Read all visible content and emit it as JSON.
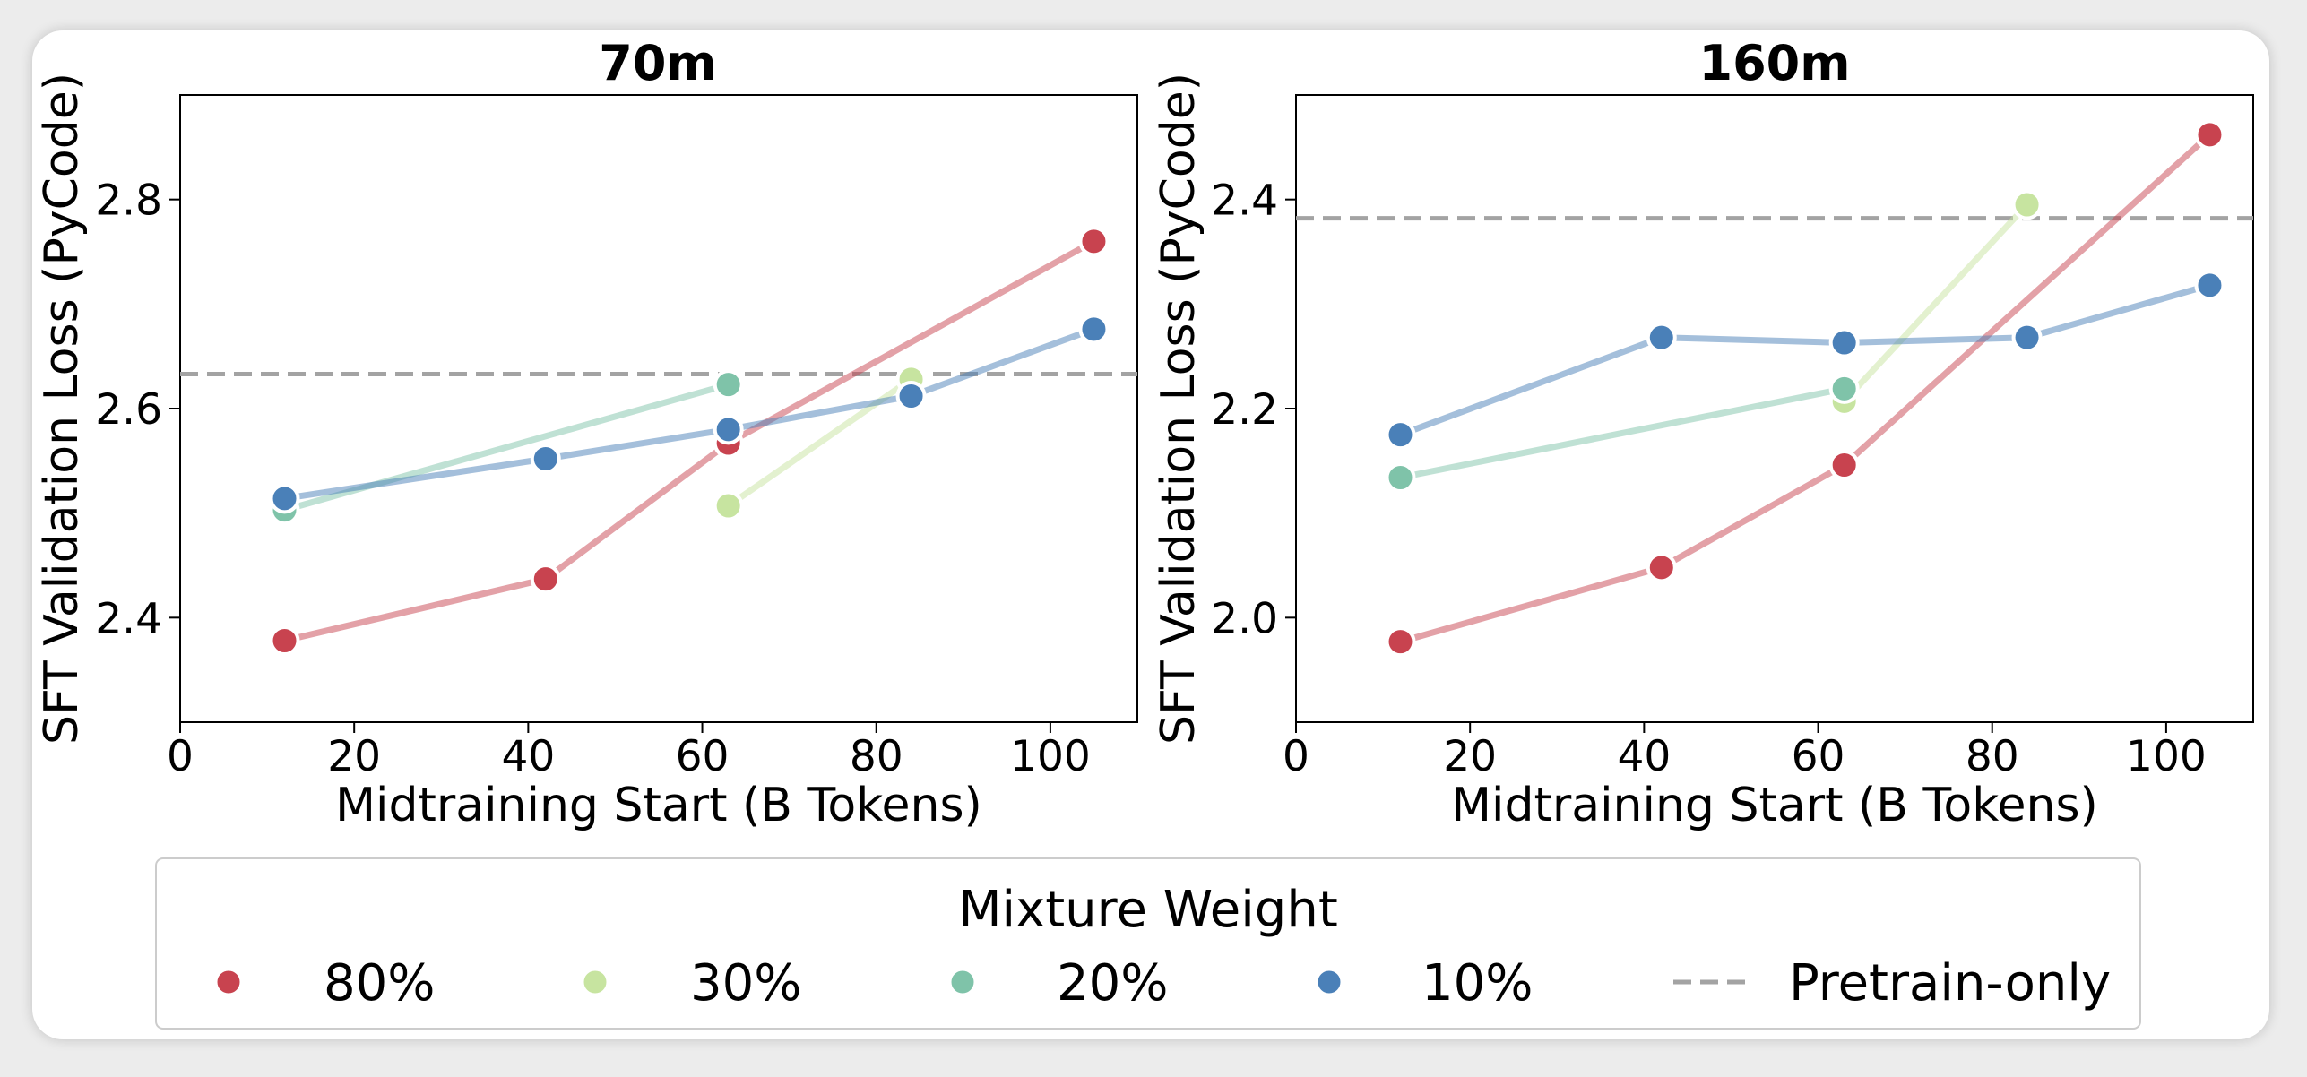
{
  "colors": {
    "80%": "#c8434f",
    "30%": "#c7e4a0",
    "20%": "#7fc3a9",
    "10%": "#4a80b8",
    "pretrain": "#a3a3a3"
  },
  "legend": {
    "title": "Mixture Weight",
    "entries": [
      {
        "label": "80%",
        "key": "80%",
        "kind": "marker"
      },
      {
        "label": "30%",
        "key": "30%",
        "kind": "marker"
      },
      {
        "label": "20%",
        "key": "20%",
        "kind": "marker"
      },
      {
        "label": "10%",
        "key": "10%",
        "kind": "marker"
      },
      {
        "label": "Pretrain-only",
        "key": "pretrain",
        "kind": "dashed"
      }
    ]
  },
  "chart_data": [
    {
      "type": "line",
      "title": "70m",
      "xlabel": "Midtraining Start (B Tokens)",
      "ylabel": "SFT Validation Loss (PyCode)",
      "xlim": [
        0,
        110
      ],
      "ylim": [
        2.3,
        2.9
      ],
      "xticks": [
        0,
        20,
        40,
        60,
        80,
        100
      ],
      "yticks": [
        2.4,
        2.6,
        2.8
      ],
      "ytick_labels": [
        "2.4",
        "2.6",
        "2.8"
      ],
      "pretrain_only": 2.633,
      "series": [
        {
          "name": "80%",
          "x": [
            12,
            42,
            63,
            105
          ],
          "y": [
            2.378,
            2.437,
            2.567,
            2.76
          ]
        },
        {
          "name": "30%",
          "x": [
            63,
            84
          ],
          "y": [
            2.507,
            2.628
          ]
        },
        {
          "name": "20%",
          "x": [
            12,
            63
          ],
          "y": [
            2.503,
            2.623
          ]
        },
        {
          "name": "10%",
          "x": [
            12,
            42,
            63,
            84,
            105
          ],
          "y": [
            2.514,
            2.552,
            2.58,
            2.612,
            2.676
          ]
        }
      ]
    },
    {
      "type": "line",
      "title": "160m",
      "xlabel": "Midtraining Start (B Tokens)",
      "ylabel": "SFT Validation Loss (PyCode)",
      "xlim": [
        0,
        110
      ],
      "ylim": [
        1.9,
        2.5
      ],
      "xticks": [
        0,
        20,
        40,
        60,
        80,
        100
      ],
      "yticks": [
        2.0,
        2.2,
        2.4
      ],
      "ytick_labels": [
        "2.0",
        "2.2",
        "2.4"
      ],
      "pretrain_only": 2.382,
      "series": [
        {
          "name": "80%",
          "x": [
            12,
            42,
            63,
            105
          ],
          "y": [
            1.977,
            2.048,
            2.146,
            2.462
          ]
        },
        {
          "name": "30%",
          "x": [
            63,
            84
          ],
          "y": [
            2.207,
            2.395
          ]
        },
        {
          "name": "20%",
          "x": [
            12,
            63
          ],
          "y": [
            2.134,
            2.219
          ]
        },
        {
          "name": "10%",
          "x": [
            12,
            42,
            63,
            84,
            105
          ],
          "y": [
            2.175,
            2.268,
            2.263,
            2.268,
            2.318
          ]
        }
      ]
    }
  ]
}
